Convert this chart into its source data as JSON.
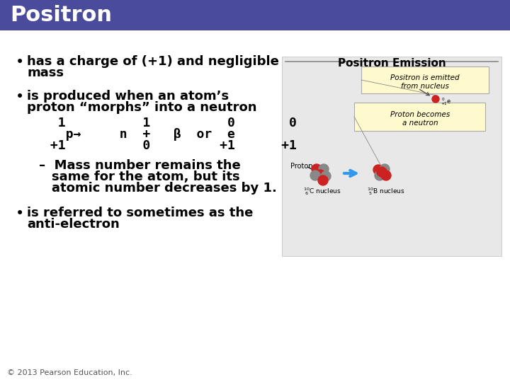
{
  "title": "Positron",
  "title_bg_color": "#4B4B9B",
  "title_text_color": "#FFFFFF",
  "bg_color": "#FFFFFF",
  "bullet1_line1": "has a charge of (+1) and negligible",
  "bullet1_line2": "mass",
  "bullet2_line1": "is produced when an atom’s",
  "bullet2_line2": "proton “morphs” into a neutron",
  "equation_row1": "  1          1          0       0",
  "equation_row2": "   p→     n  +   β  or  e",
  "equation_row3": " +1          0         +1      +1",
  "dash_line1": "Mass number remains the",
  "dash_line2": "same for the atom, but its",
  "dash_line3": "atomic number decreases by 1.",
  "bullet3_line1": "is referred to sometimes as the",
  "bullet3_line2": "anti-electron",
  "caption_title": "Positron Emission",
  "footer": "© 2013 Pearson Education, Inc.",
  "text_color": "#000000",
  "font_size_title": 22,
  "font_size_body": 13,
  "font_size_eq": 13,
  "font_size_footer": 8
}
